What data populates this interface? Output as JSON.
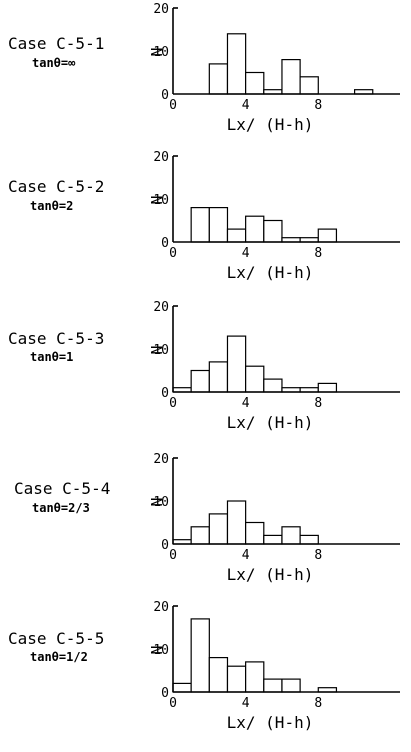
{
  "chart_data": [
    {
      "type": "bar",
      "title": "Case C-5-1",
      "subtitle": "tanθ=∞",
      "xlabel": "Lx/ (H-h)",
      "ylabel": "N",
      "bin_width": 1,
      "x_bin_start": [
        1,
        2,
        3,
        4,
        5,
        6,
        7,
        8,
        9,
        10
      ],
      "values": [
        0,
        7,
        14,
        5,
        1,
        8,
        4,
        0,
        0,
        1
      ],
      "xticks": [
        "0",
        "4",
        "8"
      ],
      "yticks": [
        "0",
        "10",
        "20"
      ],
      "xlim": [
        0,
        12.5
      ],
      "ylim": [
        0,
        20
      ]
    },
    {
      "type": "bar",
      "title": "Case C-5-2",
      "subtitle": "tanθ=2",
      "xlabel": "Lx/ (H-h)",
      "ylabel": "N",
      "bin_width": 1,
      "x_bin_start": [
        0,
        1,
        2,
        3,
        4,
        5,
        6,
        7,
        8
      ],
      "values": [
        0,
        8,
        8,
        3,
        6,
        5,
        1,
        1,
        3
      ],
      "xticks": [
        "0",
        "4",
        "8"
      ],
      "yticks": [
        "0",
        "10",
        "20"
      ],
      "xlim": [
        0,
        12.5
      ],
      "ylim": [
        0,
        20
      ]
    },
    {
      "type": "bar",
      "title": "Case C-5-3",
      "subtitle": "tanθ=1",
      "xlabel": "Lx/ (H-h)",
      "ylabel": "N",
      "bin_width": 1,
      "x_bin_start": [
        0,
        1,
        2,
        3,
        4,
        5,
        6,
        7,
        8
      ],
      "values": [
        1,
        5,
        7,
        13,
        6,
        3,
        1,
        1,
        2
      ],
      "xticks": [
        "0",
        "4",
        "8"
      ],
      "yticks": [
        "0",
        "10",
        "20"
      ],
      "xlim": [
        0,
        12.5
      ],
      "ylim": [
        0,
        20
      ]
    },
    {
      "type": "bar",
      "title": "Case C-5-4",
      "subtitle": "tanθ=2/3",
      "xlabel": "Lx/ (H-h)",
      "ylabel": "N",
      "bin_width": 1,
      "x_bin_start": [
        0,
        1,
        2,
        3,
        4,
        5,
        6,
        7
      ],
      "values": [
        1,
        4,
        7,
        10,
        5,
        2,
        4,
        2
      ],
      "xticks": [
        "0",
        "4",
        "8"
      ],
      "yticks": [
        "0",
        "10",
        "20"
      ],
      "xlim": [
        0,
        12.5
      ],
      "ylim": [
        0,
        20
      ]
    },
    {
      "type": "bar",
      "title": "Case C-5-5",
      "subtitle": "tanθ=1/2",
      "xlabel": "Lx/ (H-h)",
      "ylabel": "N",
      "bin_width": 1,
      "x_bin_start": [
        0,
        1,
        2,
        3,
        4,
        5,
        6,
        7,
        8
      ],
      "values": [
        2,
        17,
        8,
        6,
        7,
        3,
        3,
        0,
        1
      ],
      "xticks": [
        "0",
        "4",
        "8"
      ],
      "yticks": [
        "0",
        "10",
        "20"
      ],
      "xlim": [
        0,
        12.5
      ],
      "ylim": [
        0,
        20
      ]
    }
  ]
}
